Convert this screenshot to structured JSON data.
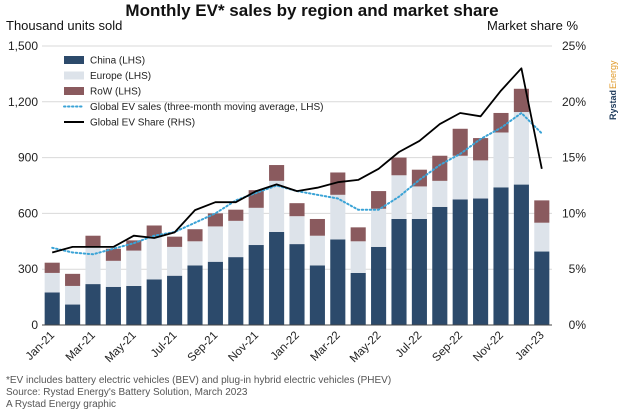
{
  "chart_data": {
    "type": "bar",
    "title": "Monthly EV* sales by region and market share",
    "ylabel_left": "Thousand units sold",
    "ylabel_right": "Market share %",
    "ylim_left": [
      0,
      1500
    ],
    "ylim_right": [
      0,
      25
    ],
    "yticks_left": [
      "0",
      "300",
      "600",
      "900",
      "1,200",
      "1,500"
    ],
    "yticks_right": [
      "0%",
      "5%",
      "10%",
      "15%",
      "20%",
      "25%"
    ],
    "x_labels_shown": [
      "Jan-21",
      "Mar-21",
      "May-21",
      "Jul-21",
      "Sep-21",
      "Nov-21",
      "Jan-22",
      "Mar-22",
      "May-22",
      "Jul-22",
      "Sep-22",
      "Nov-22",
      "Jan-23"
    ],
    "categories": [
      "Jan-21",
      "Feb-21",
      "Mar-21",
      "Apr-21",
      "May-21",
      "Jun-21",
      "Jul-21",
      "Aug-21",
      "Sep-21",
      "Oct-21",
      "Nov-21",
      "Dec-21",
      "Jan-22",
      "Feb-22",
      "Mar-22",
      "Apr-22",
      "May-22",
      "Jun-22",
      "Jul-22",
      "Aug-22",
      "Sep-22",
      "Oct-22",
      "Nov-22",
      "Dec-22",
      "Jan-23"
    ],
    "series": [
      {
        "name": "China (LHS)",
        "kind": "bar",
        "color": "#2c4a6b",
        "values": [
          175,
          110,
          220,
          205,
          210,
          245,
          265,
          320,
          340,
          365,
          430,
          500,
          435,
          320,
          460,
          280,
          420,
          570,
          570,
          635,
          675,
          680,
          740,
          755,
          395
        ]
      },
      {
        "name": "Europe (LHS)",
        "kind": "bar",
        "color": "#dde3ea",
        "values": [
          105,
          100,
          200,
          140,
          190,
          230,
          155,
          130,
          190,
          195,
          200,
          275,
          150,
          160,
          240,
          170,
          205,
          235,
          175,
          140,
          235,
          205,
          295,
          390,
          155
        ]
      },
      {
        "name": "RoW (LHS)",
        "kind": "bar",
        "color": "#8a5a5e",
        "values": [
          55,
          65,
          60,
          65,
          55,
          60,
          55,
          65,
          70,
          60,
          95,
          85,
          70,
          90,
          120,
          75,
          95,
          95,
          90,
          135,
          145,
          120,
          105,
          125,
          120
        ]
      },
      {
        "name": "Global EV sales (three-month moving average, LHS)",
        "kind": "line",
        "axis": "left",
        "style": "dotted",
        "color": "#3aa3d6",
        "values": [
          415,
          390,
          380,
          410,
          440,
          480,
          500,
          550,
          600,
          670,
          710,
          750,
          720,
          700,
          680,
          620,
          620,
          690,
          780,
          860,
          920,
          1000,
          1060,
          1140,
          1030
        ]
      },
      {
        "name": "Global EV Share (RHS)",
        "kind": "line",
        "axis": "right",
        "style": "solid",
        "color": "#000000",
        "values": [
          6.5,
          7.0,
          7.0,
          7.0,
          8.0,
          7.8,
          8.3,
          10.3,
          11.0,
          11.0,
          12.0,
          12.6,
          12.0,
          12.3,
          12.8,
          13.0,
          14.0,
          15.5,
          16.5,
          18.0,
          19.0,
          18.7,
          21.0,
          23.0,
          14.0
        ]
      }
    ],
    "legend_position": "top-left",
    "grid": "horizontal"
  },
  "brand": {
    "part1": "Rystad",
    "part2": "Energy"
  },
  "footnotes": [
    "*EV includes battery electric vehicles (BEV) and plug-in hybrid electric vehicles (PHEV)",
    "Source: Rystad Energy's Battery Solution, March 2023",
    "A Rystad Energy graphic"
  ],
  "colors": {
    "grid": "#d9d9d9",
    "axis": "#444444"
  }
}
